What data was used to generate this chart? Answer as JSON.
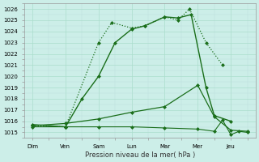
{
  "xlabel": "Pression niveau de la mer( hPa )",
  "ylim": [
    1014.5,
    1026.5
  ],
  "yticks": [
    1015,
    1016,
    1017,
    1018,
    1019,
    1020,
    1021,
    1022,
    1023,
    1024,
    1025,
    1026
  ],
  "xtick_labels": [
    "Dim",
    "Ven",
    "Sam",
    "Lun",
    "Mar",
    "Mer",
    "Jeu"
  ],
  "xtick_positions": [
    0,
    2,
    4,
    6,
    8,
    10,
    12
  ],
  "xlim": [
    -0.5,
    13.5
  ],
  "background_color": "#cceee8",
  "grid_major_color": "#aaddcc",
  "grid_minor_color": "#bbdddd",
  "line_color": "#1a6e1a",
  "series": [
    {
      "x": [
        0,
        2,
        4,
        4.8,
        6,
        6.8,
        8,
        8.8,
        9.5,
        10.5,
        11.5
      ],
      "y": [
        1015.6,
        1015.5,
        1023.0,
        1024.8,
        1024.3,
        1024.5,
        1025.3,
        1025.0,
        1026.0,
        1023.0,
        1021.0
      ],
      "linestyle": "dotted",
      "linewidth": 0.9,
      "marker": "D",
      "markersize": 2.0
    },
    {
      "x": [
        0,
        2,
        3,
        4,
        5,
        6,
        6.8,
        8,
        8.8,
        9.6,
        10.5,
        11,
        12
      ],
      "y": [
        1015.7,
        1015.5,
        1018.0,
        1020.0,
        1023.0,
        1024.2,
        1024.5,
        1025.3,
        1025.2,
        1025.5,
        1019.0,
        1016.5,
        1016.0
      ],
      "linestyle": "solid",
      "linewidth": 1.0,
      "marker": "D",
      "markersize": 2.0
    },
    {
      "x": [
        0,
        2,
        4,
        6,
        8,
        10,
        11,
        12,
        13
      ],
      "y": [
        1015.6,
        1015.8,
        1016.2,
        1016.8,
        1017.3,
        1019.2,
        1016.4,
        1015.2,
        1015.1
      ],
      "linestyle": "solid",
      "linewidth": 0.9,
      "marker": "D",
      "markersize": 2.0
    },
    {
      "x": [
        0,
        2,
        4,
        6,
        8,
        10,
        11,
        11.5,
        12,
        12.5,
        13
      ],
      "y": [
        1015.5,
        1015.5,
        1015.5,
        1015.5,
        1015.4,
        1015.3,
        1015.1,
        1016.1,
        1014.8,
        1015.1,
        1015.0
      ],
      "linestyle": "solid",
      "linewidth": 0.8,
      "marker": "D",
      "markersize": 2.0
    }
  ]
}
